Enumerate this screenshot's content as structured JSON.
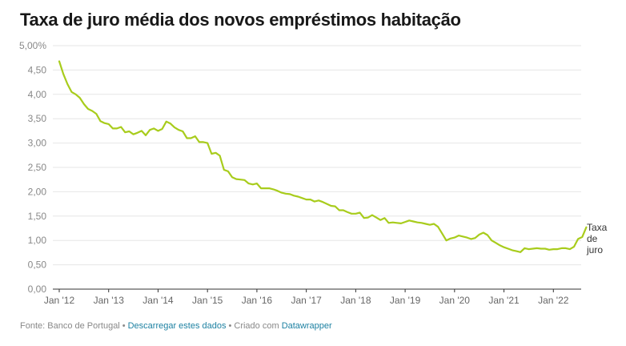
{
  "title": "Taxa de juro média dos novos empréstimos habitação",
  "footer": {
    "source_label": "Fonte: Banco de Portugal",
    "download_link": "Descarregar estes dados",
    "created_with": "Criado com",
    "tool_link": "Datawrapper"
  },
  "colors": {
    "line": "#a8cc1c",
    "grid": "#e6e6e6",
    "axis_text": "#888888",
    "link": "#1d81a2"
  },
  "chart_data": {
    "type": "line",
    "title": "Taxa de juro média dos novos empréstimos habitação",
    "xlabel": "",
    "ylabel": "",
    "ylim": [
      0,
      5
    ],
    "grid": true,
    "y_ticks": [
      "0,00",
      "0,50",
      "1,00",
      "1,50",
      "2,00",
      "2,50",
      "3,00",
      "3,50",
      "4,00",
      "4,50",
      "5,00%"
    ],
    "x_ticks": [
      "Jan '12",
      "Jan '13",
      "Jan '14",
      "Jan '15",
      "Jan '16",
      "Jan '17",
      "Jan '18",
      "Jan '19",
      "Jan '20",
      "Jan '21",
      "Jan '22"
    ],
    "x_start": "2012-01",
    "x_end": "2022-06",
    "series": [
      {
        "name": "Taxa de juro",
        "values": [
          4.68,
          4.42,
          4.21,
          4.05,
          4.0,
          3.93,
          3.8,
          3.7,
          3.66,
          3.6,
          3.45,
          3.41,
          3.39,
          3.3,
          3.3,
          3.33,
          3.22,
          3.24,
          3.18,
          3.21,
          3.25,
          3.16,
          3.27,
          3.3,
          3.25,
          3.29,
          3.44,
          3.4,
          3.32,
          3.27,
          3.24,
          3.1,
          3.1,
          3.14,
          3.02,
          3.02,
          3.0,
          2.78,
          2.8,
          2.74,
          2.45,
          2.42,
          2.3,
          2.26,
          2.25,
          2.24,
          2.17,
          2.15,
          2.17,
          2.07,
          2.07,
          2.07,
          2.05,
          2.02,
          1.98,
          1.96,
          1.95,
          1.92,
          1.9,
          1.87,
          1.84,
          1.84,
          1.8,
          1.82,
          1.79,
          1.75,
          1.71,
          1.7,
          1.62,
          1.62,
          1.58,
          1.55,
          1.55,
          1.57,
          1.46,
          1.47,
          1.52,
          1.47,
          1.42,
          1.46,
          1.36,
          1.37,
          1.36,
          1.35,
          1.38,
          1.41,
          1.39,
          1.37,
          1.36,
          1.34,
          1.32,
          1.34,
          1.28,
          1.14,
          1.0,
          1.04,
          1.06,
          1.1,
          1.08,
          1.06,
          1.03,
          1.05,
          1.12,
          1.16,
          1.11,
          1.0,
          0.95,
          0.9,
          0.86,
          0.83,
          0.8,
          0.78,
          0.76,
          0.84,
          0.82,
          0.83,
          0.84,
          0.83,
          0.83,
          0.81,
          0.82,
          0.82,
          0.84,
          0.84,
          0.82,
          0.87,
          1.03,
          1.07,
          1.27
        ]
      }
    ]
  }
}
